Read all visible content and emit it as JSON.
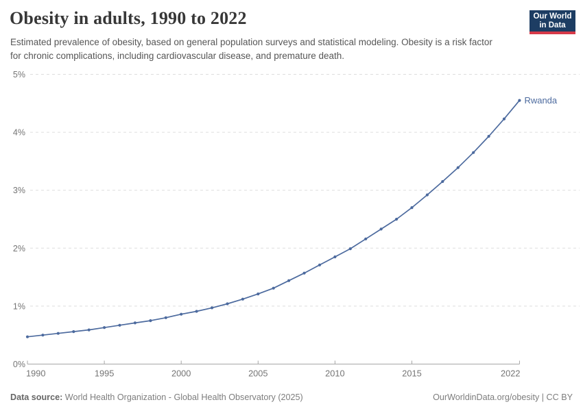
{
  "header": {
    "title": "Obesity in adults, 1990 to 2022",
    "subtitle": "Estimated prevalence of obesity, based on general population surveys and statistical modeling. Obesity is a risk factor for chronic complications, including cardiovascular disease, and premature death."
  },
  "logo": {
    "line1": "Our World",
    "line2": "in Data",
    "bg_color": "#1d3d63",
    "bar_color": "#d73a49"
  },
  "chart_data": {
    "type": "line",
    "title": "Obesity in adults, 1990 to 2022",
    "entity_label": "Rwanda",
    "unit": "%",
    "x": [
      1990,
      1991,
      1992,
      1993,
      1994,
      1995,
      1996,
      1997,
      1998,
      1999,
      2000,
      2001,
      2002,
      2003,
      2004,
      2005,
      2006,
      2007,
      2008,
      2009,
      2010,
      2011,
      2012,
      2013,
      2014,
      2015,
      2016,
      2017,
      2018,
      2019,
      2020,
      2021,
      2022
    ],
    "series": [
      {
        "name": "Rwanda",
        "color": "#4c6a9e",
        "values": [
          0.47,
          0.5,
          0.53,
          0.56,
          0.59,
          0.63,
          0.67,
          0.71,
          0.75,
          0.8,
          0.86,
          0.91,
          0.97,
          1.04,
          1.12,
          1.21,
          1.31,
          1.44,
          1.57,
          1.71,
          1.85,
          1.99,
          2.16,
          2.33,
          2.5,
          2.7,
          2.92,
          3.15,
          3.39,
          3.65,
          3.93,
          4.23,
          4.55
        ]
      }
    ],
    "xlabel": "",
    "ylabel": "",
    "ylim": [
      0,
      5
    ],
    "yticks": [
      0,
      1,
      2,
      3,
      4,
      5
    ],
    "ytick_labels": [
      "0%",
      "1%",
      "2%",
      "3%",
      "4%",
      "5%"
    ],
    "xticks": [
      1990,
      1995,
      2000,
      2005,
      2010,
      2015,
      2022
    ],
    "grid": "horizontal-dashed",
    "legend_position": "end-of-line",
    "colors": {
      "grid": "#dddddd",
      "axis": "#a6a6a6",
      "tick_text": "#757575"
    }
  },
  "footer": {
    "source_label": "Data source:",
    "source_text": " World Health Organization - Global Health Observatory (2025)",
    "rights_text": "OurWorldinData.org/obesity | CC BY"
  }
}
